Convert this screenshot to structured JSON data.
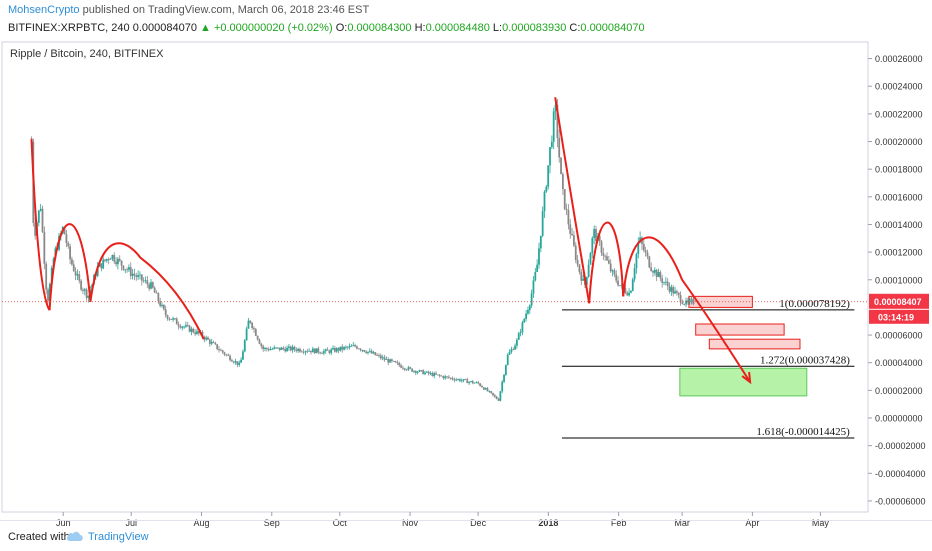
{
  "header": {
    "author": "MohsenCrypto",
    "published": "published on TradingView.com, March 06, 2018 23:46 EST",
    "symbol": "BITFINEX:XRPBTC, 240",
    "last": "0.000084070",
    "change": "▲ +0.000000020 (+0.02%)",
    "o_label": "O:",
    "o_value": "0.000084300",
    "h_label": "H:",
    "h_value": "0.000084480",
    "l_label": "L:",
    "l_value": "0.000083930",
    "c_label": "C:",
    "c_value": "0.000084070"
  },
  "footer": {
    "created_with": "Created with",
    "brand": "TradingView"
  },
  "colors": {
    "candle_up": "#26a69a",
    "candle_down": "#888888",
    "annotation": "#e8201a",
    "fib_line": "#000000",
    "green_zone": "#b6f2a8",
    "price_line": "#e53935",
    "price_label_bg": "#f23645",
    "red_box": "#fad2d2"
  },
  "chart_data": {
    "type": "candlestick",
    "title": "Ripple / Bitcoin, 240, BITFINEX",
    "ylim": [
      -6.8e-05,
      0.000272
    ],
    "y_ticks": [
      "0.00026000",
      "0.00024000",
      "0.00022000",
      "0.00020000",
      "0.00018000",
      "0.00016000",
      "0.00014000",
      "0.00012000",
      "0.00010000",
      "0.00008000",
      "0.00006000",
      "0.00004000",
      "0.00002000",
      "0.00000000",
      "-0.00002000",
      "-0.00004000",
      "-0.00006000"
    ],
    "x_ticks": [
      "Jun",
      "Jul",
      "Aug",
      "Sep",
      "Oct",
      "Nov",
      "Dec",
      "2018",
      "Feb",
      "Mar",
      "Apr",
      "May"
    ],
    "price_path": [
      [
        "2017-05-18",
        0.0002
      ],
      [
        "2017-05-19",
        0.00013
      ],
      [
        "2017-05-22",
        0.000155
      ],
      [
        "2017-05-25",
        8.3e-05
      ],
      [
        "2017-05-28",
        0.000118
      ],
      [
        "2017-06-01",
        0.000138
      ],
      [
        "2017-06-04",
        0.000115
      ],
      [
        "2017-06-08",
        9.8e-05
      ],
      [
        "2017-06-12",
        8.8e-05
      ],
      [
        "2017-06-16",
        0.000108
      ],
      [
        "2017-06-22",
        0.000118
      ],
      [
        "2017-07-01",
        0.000105
      ],
      [
        "2017-07-10",
        9.5e-05
      ],
      [
        "2017-07-16",
        7.5e-05
      ],
      [
        "2017-07-22",
        6.8e-05
      ],
      [
        "2017-08-01",
        6e-05
      ],
      [
        "2017-08-10",
        4.8e-05
      ],
      [
        "2017-08-18",
        3.8e-05
      ],
      [
        "2017-08-22",
        7.2e-05
      ],
      [
        "2017-08-28",
        5e-05
      ],
      [
        "2017-09-10",
        5e-05
      ],
      [
        "2017-09-25",
        4.8e-05
      ],
      [
        "2017-10-08",
        5.2e-05
      ],
      [
        "2017-10-20",
        4.3e-05
      ],
      [
        "2017-11-01",
        3.5e-05
      ],
      [
        "2017-11-15",
        3e-05
      ],
      [
        "2017-12-01",
        2.5e-05
      ],
      [
        "2017-12-10",
        1.3e-05
      ],
      [
        "2017-12-14",
        4.5e-05
      ],
      [
        "2017-12-18",
        5.5e-05
      ],
      [
        "2017-12-24",
        8.5e-05
      ],
      [
        "2017-12-27",
        0.00011
      ],
      [
        "2017-12-31",
        0.00017
      ],
      [
        "2018-01-04",
        0.000225
      ],
      [
        "2018-01-07",
        0.000165
      ],
      [
        "2018-01-10",
        0.00014
      ],
      [
        "2018-01-14",
        0.00011
      ],
      [
        "2018-01-17",
        9.5e-05
      ],
      [
        "2018-01-21",
        0.000135
      ],
      [
        "2018-01-25",
        0.00012
      ],
      [
        "2018-01-29",
        0.000105
      ],
      [
        "2018-02-02",
        9.5e-05
      ],
      [
        "2018-02-06",
        9e-05
      ],
      [
        "2018-02-10",
        0.00013
      ],
      [
        "2018-02-15",
        0.00011
      ],
      [
        "2018-02-20",
        0.0001
      ],
      [
        "2018-02-26",
        9e-05
      ],
      [
        "2018-03-03",
        8.2e-05
      ],
      [
        "2018-03-06",
        8.41e-05
      ]
    ],
    "fib_levels": [
      {
        "ratio": "1",
        "price": 7.8192e-05,
        "label": "1(0.000078192)"
      },
      {
        "ratio": "1.272",
        "price": 3.7428e-05,
        "label": "1.272(0.000037428)"
      },
      {
        "ratio": "1.618",
        "price": -1.4425e-05,
        "label": "1.618(-0.000014425)"
      }
    ],
    "current_price": {
      "value": 8.407e-05,
      "label": "0.00008407",
      "countdown": "03:14:19"
    },
    "target_zone": {
      "x_from": "2018-02-28",
      "x_to": "2018-04-25",
      "y_from": 1.6e-05,
      "y_to": 3.6e-05
    },
    "resistance_boxes": [
      {
        "x_from": "2018-03-04",
        "x_to": "2018-04-01",
        "y_from": 8e-05,
        "y_to": 8.8e-05
      },
      {
        "x_from": "2018-03-07",
        "x_to": "2018-04-15",
        "y_from": 6e-05,
        "y_to": 6.8e-05
      },
      {
        "x_from": "2018-03-13",
        "x_to": "2018-04-22",
        "y_from": 5e-05,
        "y_to": 5.7e-05
      }
    ],
    "grid": false
  }
}
